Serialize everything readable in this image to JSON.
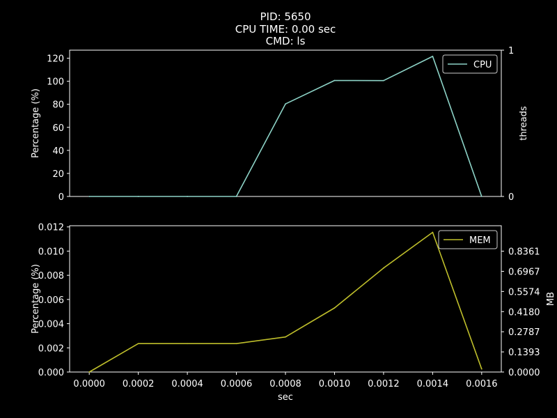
{
  "title": {
    "line1": "PID: 5650",
    "line2": "CPU TIME: 0.00 sec",
    "line3": "CMD: ls"
  },
  "colors": {
    "background": "#000000",
    "axes": "#ffffff",
    "cpu": "#8dd3c7",
    "mem": "#bfbf2b"
  },
  "chart_data": [
    {
      "type": "line",
      "xlabel": "",
      "ylabel": "Percentage (%)",
      "y2label": "threads",
      "xlim": [
        -8e-05,
        0.00168
      ],
      "ylim": [
        0,
        127
      ],
      "y2lim": [
        0,
        1
      ],
      "yticks": [
        0,
        20,
        40,
        60,
        80,
        100,
        120
      ],
      "y2ticks": [
        0,
        1
      ],
      "ytick_labels": [
        "0",
        "20",
        "40",
        "60",
        "80",
        "100",
        "120"
      ],
      "y2tick_labels": [
        "0",
        "1"
      ],
      "legend": "top-right",
      "series": [
        {
          "name": "CPU",
          "x": [
            0.0,
            0.0002,
            0.0004,
            0.0006,
            0.0008,
            0.001,
            0.0012,
            0.0014,
            0.0016
          ],
          "y": [
            0,
            0,
            0,
            0,
            80.3,
            100.7,
            100.6,
            121.6,
            0
          ]
        }
      ]
    },
    {
      "type": "line",
      "xlabel": "sec",
      "ylabel": "Percentage (%)",
      "y2label": "MB",
      "xlim": [
        -8e-05,
        0.00168
      ],
      "ylim": [
        0,
        0.0121
      ],
      "y2lim": [
        0,
        1.0123
      ],
      "xticks": [
        0.0,
        0.0002,
        0.0004,
        0.0006,
        0.0008,
        0.001,
        0.0012,
        0.0014,
        0.0016
      ],
      "xtick_labels": [
        "0.0000",
        "0.0002",
        "0.0004",
        "0.0006",
        "0.0008",
        "0.0010",
        "0.0012",
        "0.0014",
        "0.0016"
      ],
      "yticks": [
        0,
        0.002,
        0.004,
        0.006,
        0.008,
        0.01,
        0.012
      ],
      "ytick_labels": [
        "0.000",
        "0.002",
        "0.004",
        "0.006",
        "0.008",
        "0.010",
        "0.012"
      ],
      "y2ticks": [
        0,
        0.1393,
        0.2787,
        0.418,
        0.5574,
        0.6967,
        0.8361
      ],
      "y2tick_labels": [
        "0.0000",
        "0.1393",
        "0.2787",
        "0.4180",
        "0.5574",
        "0.6967",
        "0.8361"
      ],
      "legend": "top-right",
      "series": [
        {
          "name": "MEM",
          "x": [
            0.0,
            0.0002,
            0.0004,
            0.0006,
            0.0008,
            0.001,
            0.0012,
            0.0014,
            0.0016
          ],
          "y": [
            0,
            0.00235,
            0.00235,
            0.00235,
            0.0029,
            0.0053,
            0.0086,
            0.01155,
            0.00025
          ]
        }
      ]
    }
  ]
}
